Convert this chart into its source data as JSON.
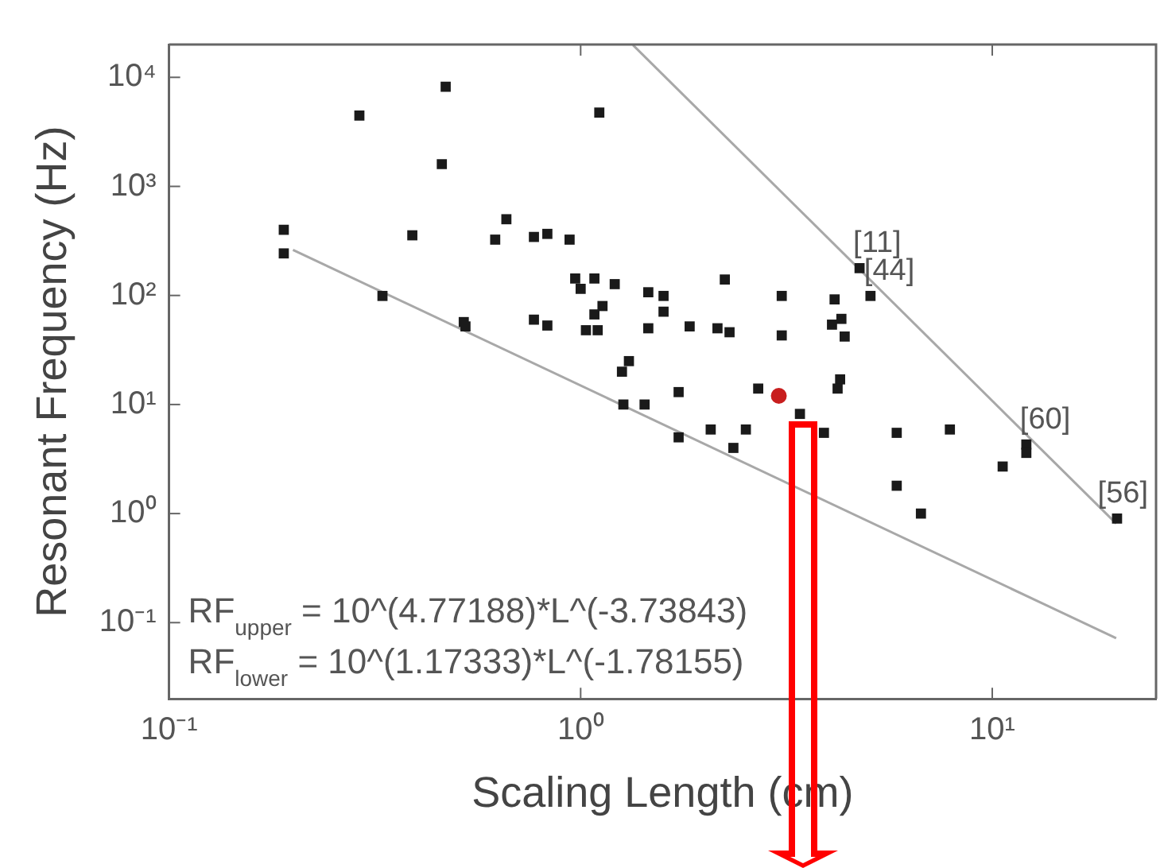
{
  "chart_data": {
    "type": "scatter",
    "xlabel": "Scaling Length (cm)",
    "ylabel": "Resonant Frequency (Hz)",
    "log": "xy",
    "grid": false,
    "legend": false,
    "xlim": [
      0.1,
      25
    ],
    "ylim": [
      0.02,
      20000
    ],
    "xticks": [
      {
        "value": 0.1,
        "label": "10⁻¹"
      },
      {
        "value": 1,
        "label": "10⁰"
      },
      {
        "value": 10,
        "label": "10¹"
      }
    ],
    "yticks": [
      {
        "value": 0.1,
        "label": "10⁻¹"
      },
      {
        "value": 1,
        "label": "10⁰"
      },
      {
        "value": 10,
        "label": "10¹"
      },
      {
        "value": 100,
        "label": "10²"
      },
      {
        "value": 1000,
        "label": "10³"
      },
      {
        "value": 10000,
        "label": "10⁴"
      }
    ],
    "series": [
      {
        "color": "#c81e1e",
        "marker": "circle",
        "x": [
          3.03
        ],
        "values": [
          12
        ]
      },
      {
        "color": "#1a1a1a",
        "marker": "square",
        "x": [
          0.19,
          0.19,
          0.29,
          0.47,
          0.46,
          0.39,
          0.33,
          0.52,
          0.525,
          0.66,
          0.62,
          0.77,
          0.83,
          0.94,
          1.11,
          0.97,
          1.0,
          1.08,
          1.21,
          1.46,
          1.13,
          1.08,
          0.77,
          0.83,
          1.03,
          1.1,
          1.46,
          1.31,
          1.26,
          1.27,
          1.43,
          1.59,
          2.24,
          3.08,
          4.14,
          4.76,
          5.06,
          1.59,
          1.84,
          2.15,
          2.3,
          3.08,
          4.08,
          4.3,
          4.38,
          4.27,
          4.21,
          2.7,
          1.73,
          3.41,
          1.73,
          2.07,
          2.52,
          2.35,
          3.9,
          5.86,
          7.89,
          5.86,
          6.71,
          10.6,
          12.1,
          12.1,
          20.1
        ],
        "values": [
          400,
          243,
          4460,
          8200,
          1600,
          356,
          99,
          57,
          52,
          500,
          325,
          344,
          367,
          325,
          4760,
          143,
          115,
          143,
          127,
          107,
          80,
          67,
          60,
          53,
          48,
          48,
          50,
          25,
          20,
          10,
          10,
          99,
          140,
          99,
          92,
          178,
          99,
          71,
          52,
          50,
          46,
          43,
          54,
          61,
          42,
          17,
          14,
          14,
          13,
          8.2,
          5.0,
          5.9,
          5.9,
          4.0,
          5.5,
          5.5,
          5.9,
          1.8,
          1.0,
          2.7,
          4.3,
          3.6,
          0.9
        ]
      },
      {
        "type": "line",
        "color": "#a8a8a8",
        "marker": "none",
        "x": [
          1.34,
          20
        ],
        "values": [
          19800,
          0.81
        ]
      },
      {
        "type": "line",
        "color": "#a8a8a8",
        "marker": "none",
        "x": [
          0.2,
          20
        ],
        "values": [
          262,
          0.072
        ]
      }
    ],
    "annotations": [
      {
        "text": "[11]",
        "x": 4.76,
        "y": 178
      },
      {
        "text": "[44]",
        "x": 5.06,
        "y": 99
      },
      {
        "text": "[60]",
        "x": 12.1,
        "y": 4.3
      },
      {
        "text": "[56]",
        "x": 20.1,
        "y": 0.9
      },
      "RF$_{upper}$ = 10^(4.77188)*L^(-3.73843)",
      "RF$_{lower}$ = 10^(1.17333)*L^(-1.78155)"
    ]
  }
}
